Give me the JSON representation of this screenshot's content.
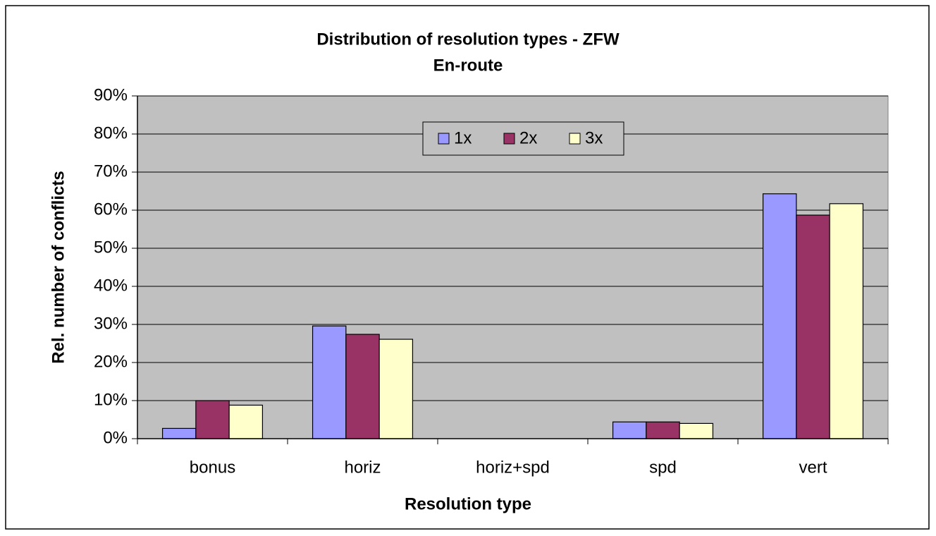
{
  "chart_data": {
    "type": "bar",
    "title": "Distribution of resolution types - ZFW",
    "subtitle": "En-route",
    "x_label": "Resolution type",
    "y_label": "Rel. number of conflicts",
    "categories": [
      "bonus",
      "horiz",
      "horiz+spd",
      "spd",
      "vert"
    ],
    "series": [
      {
        "name": "1x",
        "color": "#9999ff",
        "values": [
          2.7,
          29.6,
          0,
          4.4,
          64.3
        ]
      },
      {
        "name": "2x",
        "color": "#993366",
        "values": [
          10,
          27.4,
          0,
          4.4,
          58.7
        ]
      },
      {
        "name": "3x",
        "color": "#ffffcc",
        "values": [
          8.8,
          26.1,
          0,
          4.0,
          61.7
        ]
      }
    ],
    "ylim": [
      0,
      90
    ],
    "yticks": [
      {
        "value": 0,
        "label": "0%"
      },
      {
        "value": 10,
        "label": "10%"
      },
      {
        "value": 20,
        "label": "20%"
      },
      {
        "value": 30,
        "label": "30%"
      },
      {
        "value": 40,
        "label": "40%"
      },
      {
        "value": 50,
        "label": "50%"
      },
      {
        "value": 60,
        "label": "60%"
      },
      {
        "value": 70,
        "label": "70%"
      },
      {
        "value": 80,
        "label": "80%"
      },
      {
        "value": 90,
        "label": "90%"
      }
    ],
    "grid": true,
    "legend": "top",
    "plot_background": "#c0c0c0"
  }
}
